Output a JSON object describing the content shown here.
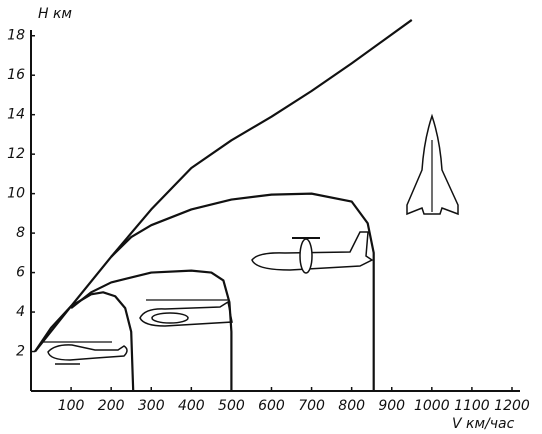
{
  "chart_data": {
    "type": "line",
    "y_label": "H км",
    "x_label": "V км/час",
    "xlim": [
      0,
      1220
    ],
    "ylim": [
      0,
      19
    ],
    "xticks": [
      100,
      200,
      300,
      400,
      500,
      600,
      700,
      800,
      900,
      1000,
      1100,
      1200
    ],
    "yticks": [
      2,
      4,
      6,
      8,
      10,
      12,
      14,
      16,
      18
    ],
    "series": [
      {
        "color": "#111111",
        "x": [
          10,
          100,
          200,
          300,
          400,
          500,
          600,
          700,
          800,
          950
        ],
        "values": [
          2,
          4.3,
          6.8,
          9.2,
          11.3,
          12.7,
          13.9,
          15.2,
          16.6,
          18.8
        ]
      },
      {
        "color": "#111111",
        "x": [
          200,
          250,
          300,
          400,
          500,
          600,
          700,
          800,
          840,
          855,
          855
        ],
        "values": [
          6.8,
          7.8,
          8.4,
          9.2,
          9.7,
          9.95,
          10,
          9.6,
          8.5,
          7,
          0
        ]
      },
      {
        "color": "#111111",
        "x": [
          100,
          150,
          200,
          300,
          400,
          450,
          480,
          495,
          500,
          500
        ],
        "values": [
          4.2,
          5,
          5.5,
          6,
          6.1,
          6,
          5.6,
          4.5,
          3,
          0
        ]
      },
      {
        "color": "#111111",
        "x": [
          10,
          50,
          100,
          150,
          180,
          210,
          235,
          250,
          255,
          255
        ],
        "values": [
          2,
          3.2,
          4.3,
          4.9,
          5,
          4.8,
          4.2,
          3,
          0,
          0
        ]
      }
    ]
  }
}
